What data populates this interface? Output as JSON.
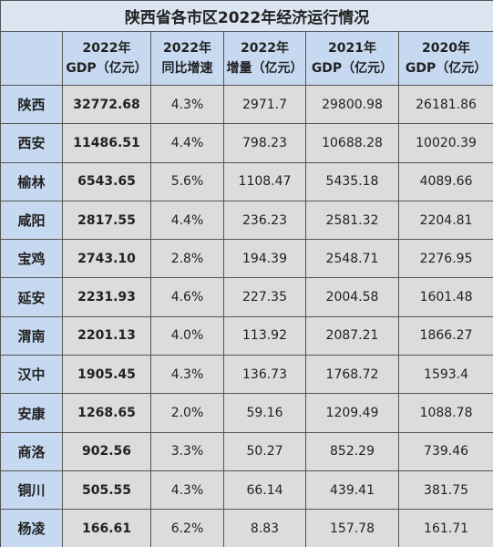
{
  "table": {
    "title": "陕西省各市区2022年经济运行情况",
    "header": [
      [
        ""
      ],
      [
        "2022年",
        "GDP（亿元）"
      ],
      [
        "2022年",
        "同比增速"
      ],
      [
        "2022年",
        "增量（亿元）"
      ],
      [
        "2021年",
        "GDP（亿元）"
      ],
      [
        "2020年",
        "GDP（亿元）"
      ]
    ],
    "rows": [
      [
        "陕西",
        "32772.68",
        "4.3%",
        "2971.7",
        "29800.98",
        "26181.86"
      ],
      [
        "西安",
        "11486.51",
        "4.4%",
        "798.23",
        "10688.28",
        "10020.39"
      ],
      [
        "榆林",
        "6543.65",
        "5.6%",
        "1108.47",
        "5435.18",
        "4089.66"
      ],
      [
        "咸阳",
        "2817.55",
        "4.4%",
        "236.23",
        "2581.32",
        "2204.81"
      ],
      [
        "宝鸡",
        "2743.10",
        "2.8%",
        "194.39",
        "2548.71",
        "2276.95"
      ],
      [
        "延安",
        "2231.93",
        "4.6%",
        "227.35",
        "2004.58",
        "1601.48"
      ],
      [
        "渭南",
        "2201.13",
        "4.0%",
        "113.92",
        "2087.21",
        "1866.27"
      ],
      [
        "汉中",
        "1905.45",
        "4.3%",
        "136.73",
        "1768.72",
        "1593.4"
      ],
      [
        "安康",
        "1268.65",
        "2.0%",
        "59.16",
        "1209.49",
        "1088.78"
      ],
      [
        "商洛",
        "902.56",
        "3.3%",
        "50.27",
        "852.29",
        "739.46"
      ],
      [
        "铜川",
        "505.55",
        "4.3%",
        "66.14",
        "439.41",
        "381.75"
      ],
      [
        "杨凌",
        "166.61",
        "6.2%",
        "8.83",
        "157.78",
        "161.71"
      ]
    ]
  }
}
